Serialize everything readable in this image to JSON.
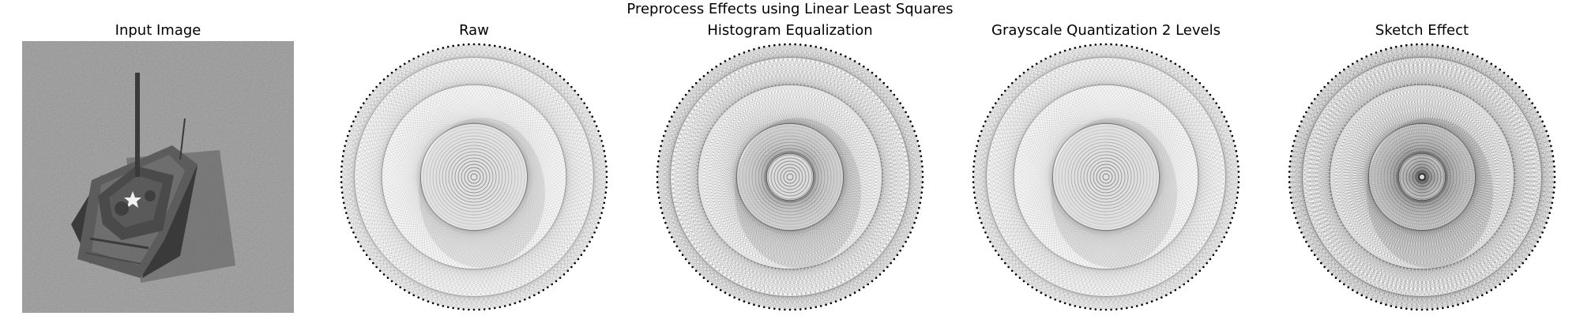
{
  "figure": {
    "title": "Preprocess Effects using Linear Least Squares"
  },
  "panels": [
    {
      "id": "input",
      "title": "Input Image",
      "kind": "photo"
    },
    {
      "id": "raw",
      "title": "Raw",
      "kind": "string-art",
      "density": 0.55
    },
    {
      "id": "hist",
      "title": "Histogram Equalization",
      "kind": "string-art",
      "density": 0.8
    },
    {
      "id": "quant",
      "title": "Grayscale Quantization 2 Levels",
      "kind": "string-art",
      "density": 0.62
    },
    {
      "id": "sketch",
      "title": "Sketch Effect",
      "kind": "string-art",
      "density": 0.95
    }
  ],
  "colors": {
    "photo_ground": "#a9a9a9",
    "tank_body": "#4a4a4a",
    "thread": "#1a1a1a",
    "pin": "#000000"
  },
  "icons": {
    "tank_marking": "star-icon"
  }
}
